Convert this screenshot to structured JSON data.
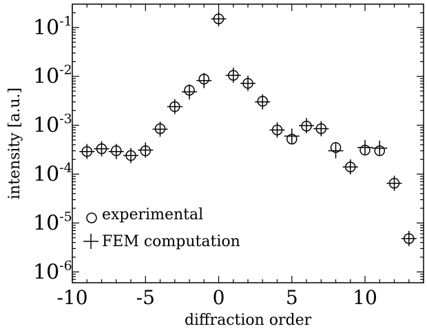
{
  "chart_data": {
    "type": "scatter",
    "title": "",
    "xlabel": "diffraction order",
    "ylabel": "intensity [a.u.]",
    "xlim": [
      -10,
      14
    ],
    "ylim": [
      6e-07,
      0.3
    ],
    "yscale": "log",
    "grid": false,
    "legend_placement": "bottom-left",
    "x_ticks": [
      {
        "value": -10,
        "label": "-10"
      },
      {
        "value": -5,
        "label": "-5"
      },
      {
        "value": 0,
        "label": "0"
      },
      {
        "value": 5,
        "label": "5"
      },
      {
        "value": 10,
        "label": "10"
      }
    ],
    "y_ticks": [
      {
        "value": 1e-06,
        "base": "10",
        "exp": "-6"
      },
      {
        "value": 1e-05,
        "base": "10",
        "exp": "-5"
      },
      {
        "value": 0.0001,
        "base": "10",
        "exp": "-4"
      },
      {
        "value": 0.001,
        "base": "10",
        "exp": "-3"
      },
      {
        "value": 0.01,
        "base": "10",
        "exp": "-2"
      },
      {
        "value": 0.1,
        "base": "10",
        "exp": "-1"
      }
    ],
    "series": [
      {
        "name": "experimental",
        "marker": "circle",
        "points": [
          [
            -9,
            0.00029
          ],
          [
            -8,
            0.00033
          ],
          [
            -7,
            0.0003
          ],
          [
            -6,
            0.00024
          ],
          [
            -5,
            0.0003
          ],
          [
            -4,
            0.00085
          ],
          [
            -3,
            0.0024
          ],
          [
            -2,
            0.0052
          ],
          [
            -1,
            0.0088
          ],
          [
            0,
            0.15
          ],
          [
            1,
            0.0105
          ],
          [
            2,
            0.0072
          ],
          [
            3,
            0.0031
          ],
          [
            4,
            0.0008
          ],
          [
            5,
            0.00052
          ],
          [
            6,
            0.00096
          ],
          [
            7,
            0.00085
          ],
          [
            8,
            0.00035
          ],
          [
            9,
            0.00014
          ],
          [
            10,
            0.00031
          ],
          [
            11,
            0.0003
          ],
          [
            12,
            6.5e-05
          ],
          [
            13,
            4.8e-06
          ]
        ]
      },
      {
        "name": "FEM computation",
        "marker": "plus",
        "points": [
          [
            -9,
            0.00029
          ],
          [
            -8,
            0.00033
          ],
          [
            -7,
            0.00029
          ],
          [
            -6,
            0.00024
          ],
          [
            -5,
            0.00031
          ],
          [
            -4,
            0.00083
          ],
          [
            -3,
            0.0024
          ],
          [
            -2,
            0.0048
          ],
          [
            -1,
            0.0082
          ],
          [
            0,
            0.15
          ],
          [
            1,
            0.0105
          ],
          [
            2,
            0.0072
          ],
          [
            3,
            0.003
          ],
          [
            4,
            0.0008
          ],
          [
            5,
            0.0006
          ],
          [
            6,
            0.00098
          ],
          [
            7,
            0.00085
          ],
          [
            8,
            0.0003
          ],
          [
            9,
            0.00014
          ],
          [
            10,
            0.00035
          ],
          [
            11,
            0.00034
          ],
          [
            12,
            6.5e-05
          ],
          [
            13,
            4.8e-06
          ]
        ]
      }
    ]
  }
}
